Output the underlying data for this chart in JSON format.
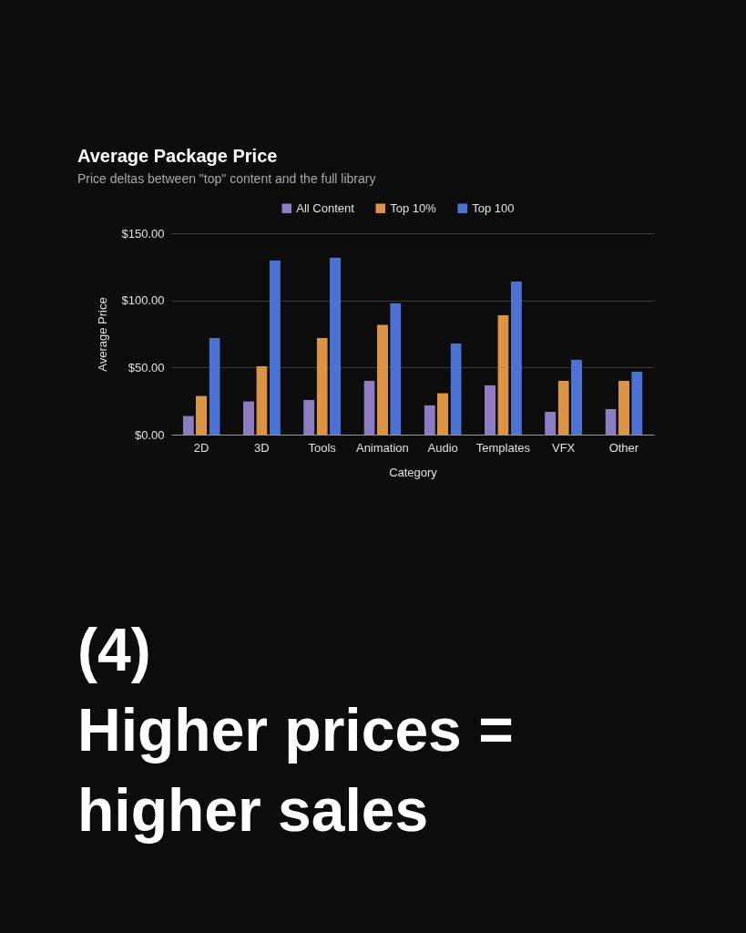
{
  "chart_data": {
    "type": "bar",
    "title": "Average Package Price",
    "subtitle": "Price deltas between \"top\" content and the full library",
    "xlabel": "Category",
    "ylabel": "Average Price",
    "categories": [
      "2D",
      "3D",
      "Tools",
      "Animation",
      "Audio",
      "Templates",
      "VFX",
      "Other"
    ],
    "series": [
      {
        "name": "All Content",
        "color": "#8e7cc3",
        "values": [
          14,
          25,
          26,
          40,
          22,
          37,
          17,
          19
        ]
      },
      {
        "name": "Top 10%",
        "color": "#dc9444",
        "values": [
          29,
          51,
          72,
          82,
          31,
          89,
          40,
          40
        ]
      },
      {
        "name": "Top 100",
        "color": "#4c73d4",
        "values": [
          72,
          130,
          132,
          98,
          68,
          114,
          56,
          47
        ]
      }
    ],
    "ylim": [
      0,
      150
    ],
    "yticks": [
      {
        "value": 0,
        "label": "$0.00"
      },
      {
        "value": 50,
        "label": "$50.00"
      },
      {
        "value": 100,
        "label": "$100.00"
      },
      {
        "value": 150,
        "label": "$150.00"
      }
    ],
    "grid": "y",
    "legend": "top",
    "annotations": [
      "(4)\nHigher prices =\nhigher sales"
    ]
  }
}
